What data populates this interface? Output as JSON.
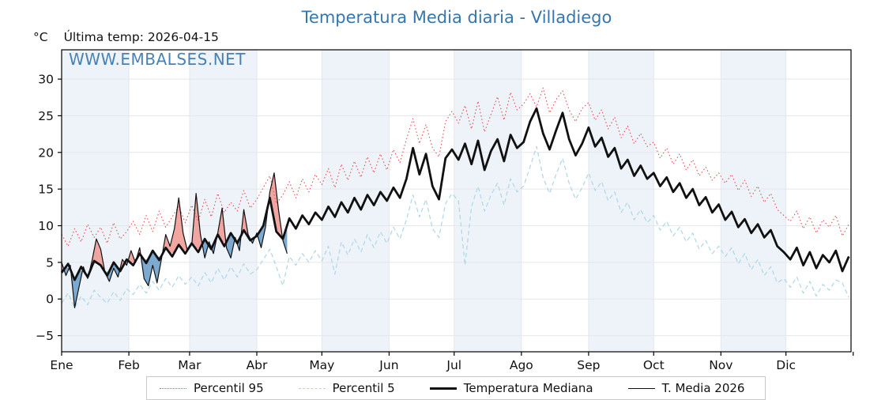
{
  "header": {
    "unit_label": "°C",
    "last_temp_label": "Última temp: 2026-04-15"
  },
  "watermark": "WWW.EMBALSES.NET",
  "colors": {
    "title_blue": "#3776ad",
    "watermark_blue": "#3878b0",
    "band_shade": "#eef3f9",
    "gridline": "#e4e7ec",
    "fill_above_median": "#ef9a94",
    "fill_below_median": "#6b9ec9"
  },
  "legend": {
    "items": [
      {
        "label": "Percentil 95"
      },
      {
        "label": "Percentil 5"
      },
      {
        "label": "Temperatura Mediana"
      },
      {
        "label": "T. Media 2026"
      }
    ]
  },
  "chart_data": {
    "type": "line",
    "title": "Temperatura Media diaria - Villadiego",
    "ylabel": "°C",
    "xlim": [
      1,
      366
    ],
    "ylim": [
      -7.2,
      34.0
    ],
    "y_ticks": [
      -5,
      0,
      5,
      10,
      15,
      20,
      25,
      30
    ],
    "x_tick_labels": [
      "Ene",
      "Feb",
      "Mar",
      "Abr",
      "May",
      "Jun",
      "Jul",
      "Ago",
      "Sep",
      "Oct",
      "Nov",
      "Dic"
    ],
    "month_boundaries_day_of_year": [
      1,
      32,
      60,
      91,
      121,
      152,
      182,
      213,
      244,
      274,
      305,
      335,
      366
    ],
    "shaded_month_indices": [
      0,
      2,
      4,
      6,
      8,
      10
    ],
    "grid": true,
    "legend_position": "bottom",
    "series": [
      {
        "name": "Percentil 95",
        "style": "dotted",
        "color": "#e25555",
        "width": 1.1,
        "start_day": 1,
        "step_days": 3,
        "values": [
          8.8,
          7.2,
          9.6,
          7.8,
          10.2,
          8.4,
          9.8,
          7.6,
          10.4,
          8.2,
          9.2,
          10.6,
          8.8,
          11.4,
          9.2,
          12.0,
          9.8,
          11.2,
          12.6,
          10.4,
          12.8,
          10.6,
          13.6,
          11.2,
          14.4,
          11.8,
          13.2,
          12.0,
          14.8,
          12.4,
          13.6,
          15.2,
          16.8,
          13.0,
          14.2,
          16.0,
          13.8,
          16.4,
          14.6,
          17.0,
          15.6,
          17.8,
          15.2,
          18.4,
          16.2,
          18.8,
          16.6,
          19.4,
          17.2,
          19.8,
          17.6,
          20.4,
          18.6,
          21.8,
          24.6,
          21.2,
          23.8,
          20.6,
          19.4,
          24.2,
          25.6,
          24.0,
          26.4,
          23.2,
          27.0,
          22.8,
          25.2,
          27.6,
          24.4,
          28.2,
          25.8,
          26.6,
          28.0,
          26.2,
          28.8,
          25.4,
          27.2,
          28.4,
          25.8,
          24.2,
          26.0,
          26.8,
          24.4,
          25.8,
          23.2,
          24.8,
          22.0,
          23.6,
          21.2,
          22.6,
          20.8,
          21.4,
          19.2,
          20.6,
          18.4,
          19.8,
          17.6,
          19.0,
          16.8,
          18.0,
          16.2,
          17.2,
          15.8,
          17.0,
          14.8,
          16.2,
          14.0,
          15.4,
          13.2,
          14.4,
          12.2,
          11.4,
          10.6,
          12.0,
          9.6,
          11.2,
          9.0,
          10.8,
          9.8,
          11.4,
          8.6,
          10.2
        ]
      },
      {
        "name": "Percentil 5",
        "style": "dashed",
        "color": "#aed6e8",
        "width": 1.2,
        "start_day": 1,
        "step_days": 3,
        "values": [
          -0.6,
          0.8,
          -1.2,
          0.4,
          -0.8,
          1.2,
          0.2,
          -0.6,
          1.0,
          -0.2,
          1.4,
          0.6,
          2.0,
          0.8,
          2.4,
          1.2,
          2.8,
          1.6,
          3.2,
          2.0,
          3.0,
          1.8,
          3.6,
          2.2,
          4.2,
          2.6,
          4.4,
          3.0,
          4.8,
          3.4,
          4.0,
          5.4,
          6.8,
          4.4,
          1.8,
          5.8,
          4.6,
          6.2,
          5.0,
          6.6,
          5.2,
          7.2,
          3.4,
          7.8,
          6.0,
          8.2,
          6.4,
          8.8,
          7.0,
          9.2,
          7.6,
          9.8,
          8.2,
          10.8,
          14.2,
          11.2,
          13.6,
          9.6,
          8.4,
          13.0,
          14.4,
          13.4,
          4.6,
          12.6,
          15.4,
          12.0,
          14.2,
          15.8,
          12.8,
          16.4,
          14.6,
          15.4,
          18.0,
          20.8,
          16.6,
          14.4,
          17.0,
          19.2,
          15.8,
          13.6,
          15.2,
          17.2,
          14.8,
          16.0,
          13.4,
          14.6,
          11.8,
          13.2,
          10.8,
          12.2,
          10.4,
          11.4,
          9.4,
          10.6,
          8.6,
          9.8,
          7.8,
          9.0,
          6.8,
          8.0,
          6.2,
          7.2,
          5.8,
          7.0,
          4.8,
          6.2,
          4.0,
          5.4,
          3.2,
          4.4,
          2.2,
          2.8,
          1.6,
          3.0,
          0.8,
          2.4,
          0.4,
          2.0,
          1.2,
          2.6,
          2.2,
          0.2
        ]
      },
      {
        "name": "Temperatura Mediana",
        "style": "solid",
        "color": "#111111",
        "width": 2.8,
        "start_day": 1,
        "step_days": 3,
        "values": [
          3.6,
          4.8,
          2.6,
          4.4,
          3.0,
          5.2,
          4.6,
          3.2,
          5.0,
          3.8,
          5.4,
          4.6,
          6.2,
          4.9,
          6.6,
          5.3,
          7.0,
          5.8,
          7.4,
          6.2,
          7.6,
          6.4,
          8.2,
          6.8,
          8.8,
          7.2,
          9.0,
          7.6,
          9.4,
          8.0,
          8.6,
          10.0,
          13.8,
          9.2,
          8.2,
          11.0,
          9.6,
          11.4,
          10.2,
          11.8,
          10.8,
          12.6,
          11.2,
          13.2,
          11.8,
          13.8,
          12.2,
          14.2,
          12.8,
          14.6,
          13.4,
          15.2,
          13.8,
          16.4,
          20.6,
          17.0,
          19.8,
          15.4,
          13.6,
          19.2,
          20.4,
          19.0,
          21.2,
          18.4,
          21.6,
          17.6,
          20.2,
          21.8,
          18.8,
          22.4,
          20.6,
          21.4,
          24.2,
          26.0,
          22.6,
          20.4,
          23.0,
          25.4,
          21.8,
          19.6,
          21.2,
          23.4,
          20.8,
          22.0,
          19.4,
          20.6,
          17.8,
          19.0,
          16.8,
          18.2,
          16.4,
          17.2,
          15.4,
          16.6,
          14.6,
          15.8,
          13.8,
          15.0,
          12.8,
          13.9,
          11.8,
          12.9,
          10.8,
          11.9,
          9.8,
          10.9,
          9.0,
          10.2,
          8.4,
          9.4,
          7.2,
          6.4,
          5.4,
          7.0,
          4.6,
          6.4,
          4.2,
          6.0,
          5.0,
          6.6,
          3.8,
          5.8
        ]
      },
      {
        "name": "T. Media 2026",
        "style": "solid",
        "color": "#111111",
        "width": 1.2,
        "start_day": 1,
        "step_days": 2,
        "values": [
          5.0,
          3.2,
          4.6,
          -1.2,
          1.6,
          4.4,
          2.8,
          5.2,
          8.2,
          6.8,
          3.6,
          2.4,
          4.2,
          3.0,
          5.4,
          4.6,
          6.6,
          5.0,
          7.0,
          2.8,
          1.8,
          4.6,
          2.2,
          5.4,
          8.8,
          7.2,
          9.6,
          13.8,
          9.0,
          6.6,
          7.4,
          14.4,
          8.8,
          5.6,
          7.8,
          6.2,
          9.0,
          12.4,
          7.0,
          5.6,
          8.4,
          6.6,
          12.2,
          8.8,
          7.6,
          9.0,
          7.0,
          9.8,
          14.6,
          17.2,
          12.2,
          8.0,
          6.2
        ]
      }
    ],
    "fill_between": {
      "series_a": "T. Media 2026",
      "series_b": "Temperatura Mediana",
      "above_color": "#ef9a94",
      "below_color": "#6b9ec9"
    }
  }
}
